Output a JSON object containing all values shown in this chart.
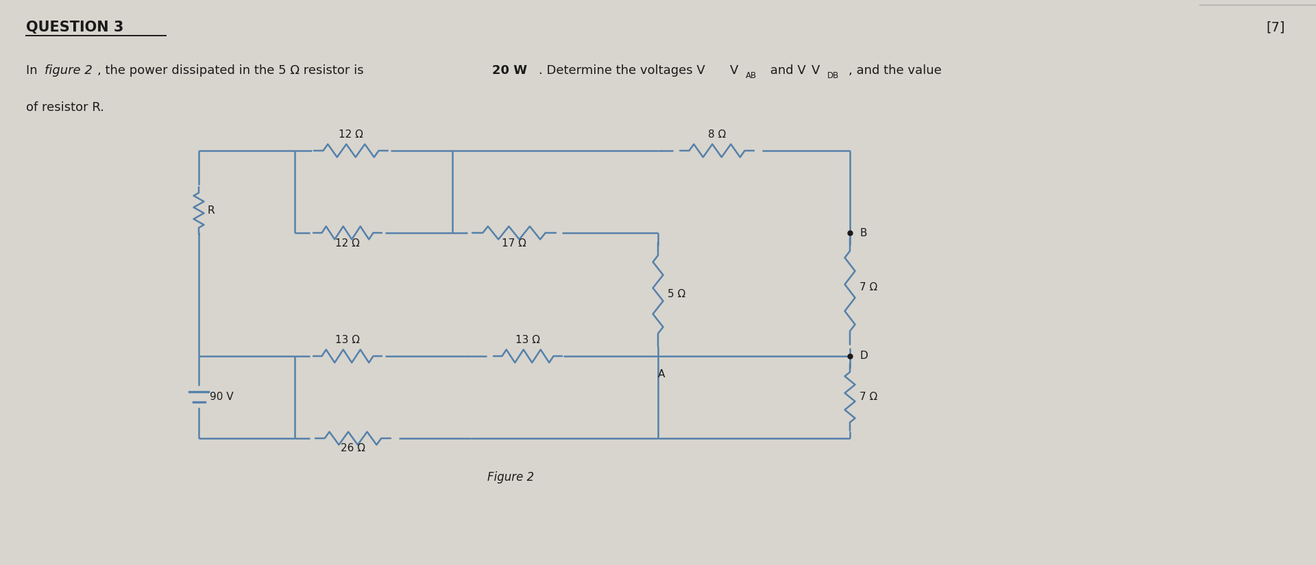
{
  "bg_color": "#d8d5ce",
  "line_color": "#5580aa",
  "text_color": "#1a1a1a",
  "title": "QUESTION 3",
  "mark": "[7]",
  "figure_caption": "Figure 2",
  "voltage_source": "90 V",
  "resistors": {
    "R_top": "12 Ω",
    "R_mid_left": "12 Ω",
    "R_mid_right": "17 Ω",
    "R_right_vert": "5 Ω",
    "R_top_right": "8 Ω",
    "R_bot_left": "13 Ω",
    "R_bot_mid": "13 Ω",
    "R_bot_right_top": "7 Ω",
    "R_bot_right_bot": "7 Ω",
    "R_bot_far": "26 Ω",
    "R_left_vert": "R"
  },
  "nodes": {
    "B": "B",
    "D": "D",
    "A": "A"
  }
}
